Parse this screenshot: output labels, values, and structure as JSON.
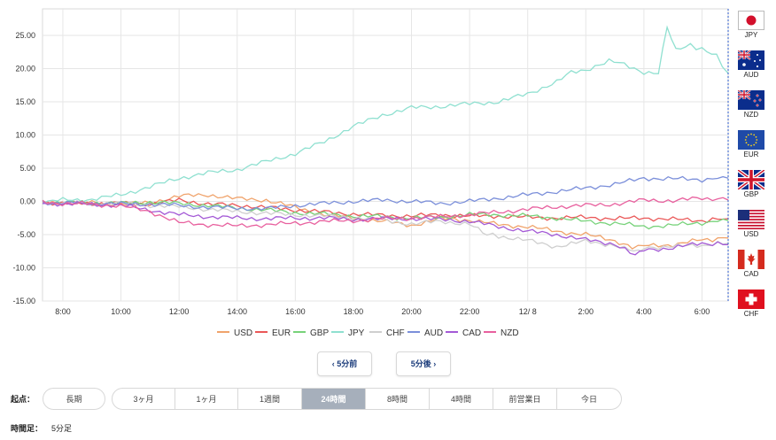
{
  "chart_data": {
    "type": "line",
    "x_ticks": [
      "8:00",
      "10:00",
      "12:00",
      "14:00",
      "16:00",
      "18:00",
      "20:00",
      "22:00",
      "12/ 8",
      "2:00",
      "4:00",
      "6:00"
    ],
    "x_range": [
      7.3,
      30.9
    ],
    "y_ticks": [
      "25.00",
      "20.00",
      "15.00",
      "10.00",
      "5.00",
      "0.00",
      "-5.00",
      "-10.00",
      "-15.00"
    ],
    "ylim": [
      -15,
      29
    ],
    "grid": true,
    "legend_position": "bottom",
    "series": [
      {
        "name": "USD",
        "color": "#f0a36b",
        "points": [
          [
            7.3,
            -0.3
          ],
          [
            9,
            -0.2
          ],
          [
            10,
            -0.4
          ],
          [
            11,
            -0.2
          ],
          [
            12,
            0.8
          ],
          [
            13,
            1.0
          ],
          [
            14,
            0.4
          ],
          [
            15,
            0.2
          ],
          [
            16,
            -0.9
          ],
          [
            17,
            -2.0
          ],
          [
            18,
            -2.5
          ],
          [
            19,
            -3.0
          ],
          [
            20,
            -3.6
          ],
          [
            21,
            -2.6
          ],
          [
            22,
            -2.8
          ],
          [
            23,
            -3.5
          ],
          [
            24,
            -3.8
          ],
          [
            25,
            -4.5
          ],
          [
            26,
            -5.0
          ],
          [
            27,
            -5.9
          ],
          [
            27.6,
            -6.8
          ],
          [
            28,
            -6.7
          ],
          [
            29,
            -6.5
          ],
          [
            30,
            -5.8
          ],
          [
            30.9,
            -5.5
          ]
        ]
      },
      {
        "name": "EUR",
        "color": "#ea5858",
        "points": [
          [
            7.3,
            -0.2
          ],
          [
            9,
            -0.3
          ],
          [
            10,
            -0.3
          ],
          [
            11,
            -0.4
          ],
          [
            12,
            0.2
          ],
          [
            13,
            -0.4
          ],
          [
            14,
            -0.6
          ],
          [
            15,
            -0.9
          ],
          [
            16,
            -1.3
          ],
          [
            17,
            -1.6
          ],
          [
            18,
            -1.9
          ],
          [
            19,
            -2.1
          ],
          [
            20,
            -2.2
          ],
          [
            21,
            -2.0
          ],
          [
            22,
            -2.2
          ],
          [
            23,
            -2.2
          ],
          [
            24,
            -2.4
          ],
          [
            25,
            -2.5
          ],
          [
            26,
            -2.4
          ],
          [
            27,
            -2.6
          ],
          [
            28,
            -2.5
          ],
          [
            29,
            -2.7
          ],
          [
            30,
            -2.9
          ],
          [
            30.9,
            -2.6
          ]
        ]
      },
      {
        "name": "GBP",
        "color": "#77d27a",
        "points": [
          [
            7.3,
            -0.1
          ],
          [
            9,
            -0.2
          ],
          [
            10,
            -0.3
          ],
          [
            11,
            -0.1
          ],
          [
            12,
            -0.3
          ],
          [
            13,
            -0.6
          ],
          [
            14,
            -1.0
          ],
          [
            15,
            -1.3
          ],
          [
            16,
            -1.7
          ],
          [
            17,
            -1.9
          ],
          [
            18,
            -2.2
          ],
          [
            19,
            -2.3
          ],
          [
            20,
            -2.5
          ],
          [
            21,
            -2.4
          ],
          [
            22,
            -2.0
          ],
          [
            23,
            -2.0
          ],
          [
            24,
            -2.2
          ],
          [
            25,
            -2.5
          ],
          [
            26,
            -3.0
          ],
          [
            27,
            -3.3
          ],
          [
            28,
            -3.8
          ],
          [
            29,
            -3.6
          ],
          [
            30,
            -3.2
          ],
          [
            30.9,
            -2.9
          ]
        ]
      },
      {
        "name": "JPY",
        "color": "#8fe0d0",
        "points": [
          [
            7.3,
            0.0
          ],
          [
            8,
            0.2
          ],
          [
            9,
            0.3
          ],
          [
            10,
            1.0
          ],
          [
            11,
            2.2
          ],
          [
            12,
            3.5
          ],
          [
            13,
            4.3
          ],
          [
            14,
            4.8
          ],
          [
            15,
            6.0
          ],
          [
            16,
            7.2
          ],
          [
            17,
            9.0
          ],
          [
            18,
            11.3
          ],
          [
            19,
            13.0
          ],
          [
            20,
            14.1
          ],
          [
            21,
            14.3
          ],
          [
            22,
            14.7
          ],
          [
            23,
            15.0
          ],
          [
            24,
            16.2
          ],
          [
            25,
            18.0
          ],
          [
            25.5,
            19.4
          ],
          [
            26,
            19.8
          ],
          [
            26.8,
            21.3
          ],
          [
            27.5,
            20.3
          ],
          [
            28,
            19.5
          ],
          [
            28.5,
            19.3
          ],
          [
            28.8,
            26.3
          ],
          [
            29.1,
            22.8
          ],
          [
            29.6,
            23.4
          ],
          [
            30,
            23.0
          ],
          [
            30.5,
            21.8
          ],
          [
            30.9,
            19.3
          ]
        ]
      },
      {
        "name": "CHF",
        "color": "#cfcfcf",
        "points": [
          [
            7.3,
            -0.2
          ],
          [
            9,
            -0.3
          ],
          [
            10,
            -0.3
          ],
          [
            11,
            -0.6
          ],
          [
            12,
            -0.8
          ],
          [
            13,
            -1.2
          ],
          [
            14,
            -1.5
          ],
          [
            15,
            -1.8
          ],
          [
            16,
            -2.0
          ],
          [
            17,
            -2.2
          ],
          [
            18,
            -2.4
          ],
          [
            19,
            -2.8
          ],
          [
            20,
            -3.4
          ],
          [
            21,
            -3.0
          ],
          [
            22,
            -3.4
          ],
          [
            22.6,
            -5.0
          ],
          [
            23,
            -5.2
          ],
          [
            24,
            -5.9
          ],
          [
            25,
            -6.8
          ],
          [
            26,
            -6.0
          ],
          [
            27,
            -6.6
          ],
          [
            27.8,
            -7.7
          ],
          [
            28,
            -6.9
          ],
          [
            29,
            -6.8
          ],
          [
            30,
            -6.6
          ],
          [
            30.9,
            -6.3
          ]
        ]
      },
      {
        "name": "AUD",
        "color": "#7b8fda",
        "points": [
          [
            7.3,
            -0.2
          ],
          [
            9,
            -0.3
          ],
          [
            10,
            -0.4
          ],
          [
            11,
            -0.4
          ],
          [
            12,
            -0.6
          ],
          [
            13,
            -0.9
          ],
          [
            14,
            -1.0
          ],
          [
            15,
            -1.1
          ],
          [
            16,
            -0.6
          ],
          [
            17,
            -0.3
          ],
          [
            18,
            0.0
          ],
          [
            19,
            0.2
          ],
          [
            20,
            0.0
          ],
          [
            21,
            -0.3
          ],
          [
            22,
            0.0
          ],
          [
            23,
            0.5
          ],
          [
            24,
            1.0
          ],
          [
            25,
            1.5
          ],
          [
            26,
            2.0
          ],
          [
            27,
            2.6
          ],
          [
            28,
            3.5
          ],
          [
            29,
            3.4
          ],
          [
            30,
            3.3
          ],
          [
            30.9,
            3.5
          ]
        ]
      },
      {
        "name": "CAD",
        "color": "#a45ad6",
        "points": [
          [
            7.3,
            -0.3
          ],
          [
            9,
            -0.4
          ],
          [
            10,
            -0.6
          ],
          [
            11,
            -1.3
          ],
          [
            12,
            -2.0
          ],
          [
            13,
            -2.3
          ],
          [
            14,
            -2.5
          ],
          [
            15,
            -2.6
          ],
          [
            16,
            -2.5
          ],
          [
            17,
            -2.5
          ],
          [
            18,
            -2.7
          ],
          [
            19,
            -2.6
          ],
          [
            20,
            -2.6
          ],
          [
            21,
            -2.7
          ],
          [
            22,
            -3.0
          ],
          [
            23,
            -3.8
          ],
          [
            24,
            -4.5
          ],
          [
            25,
            -5.0
          ],
          [
            26,
            -5.8
          ],
          [
            27,
            -6.4
          ],
          [
            27.7,
            -8.2
          ],
          [
            28,
            -7.3
          ],
          [
            29,
            -7.0
          ],
          [
            30,
            -6.3
          ],
          [
            30.9,
            -6.5
          ]
        ]
      },
      {
        "name": "NZD",
        "color": "#e8609e",
        "points": [
          [
            7.3,
            -0.2
          ],
          [
            9,
            -0.4
          ],
          [
            10,
            -0.7
          ],
          [
            11,
            -1.5
          ],
          [
            12,
            -3.2
          ],
          [
            13,
            -3.5
          ],
          [
            14,
            -3.7
          ],
          [
            15,
            -3.5
          ],
          [
            16,
            -3.3
          ],
          [
            17,
            -3.0
          ],
          [
            18,
            -2.9
          ],
          [
            19,
            -2.6
          ],
          [
            20,
            -2.5
          ],
          [
            21,
            -2.3
          ],
          [
            22,
            -2.0
          ],
          [
            23,
            -1.6
          ],
          [
            24,
            -1.2
          ],
          [
            25,
            -0.8
          ],
          [
            26,
            -0.6
          ],
          [
            27,
            -0.4
          ],
          [
            28,
            0.2
          ],
          [
            29,
            0.1
          ],
          [
            30,
            0.5
          ],
          [
            30.9,
            0.2
          ]
        ]
      }
    ]
  },
  "flags": [
    {
      "code": "JPY",
      "icon": "flag-japan-icon"
    },
    {
      "code": "AUD",
      "icon": "flag-australia-icon"
    },
    {
      "code": "NZD",
      "icon": "flag-new-zealand-icon"
    },
    {
      "code": "EUR",
      "icon": "flag-eu-icon"
    },
    {
      "code": "GBP",
      "icon": "flag-uk-icon"
    },
    {
      "code": "USD",
      "icon": "flag-usa-icon"
    },
    {
      "code": "CAD",
      "icon": "flag-canada-icon"
    },
    {
      "code": "CHF",
      "icon": "flag-switzerland-icon"
    }
  ],
  "nav": {
    "prev_label": "5分前",
    "next_label": "5分後"
  },
  "startpoint_label": "起点：",
  "ranges": [
    {
      "label": "長期",
      "active": false
    },
    {
      "label": "3ヶ月",
      "active": false
    },
    {
      "label": "1ヶ月",
      "active": false
    },
    {
      "label": "1週間",
      "active": false
    },
    {
      "label": "24時間",
      "active": true
    },
    {
      "label": "8時間",
      "active": false
    },
    {
      "label": "4時間",
      "active": false
    },
    {
      "label": "前営業日",
      "active": false
    },
    {
      "label": "今日",
      "active": false
    }
  ],
  "timeframe": {
    "label": "時間足：",
    "value": "5分足"
  }
}
